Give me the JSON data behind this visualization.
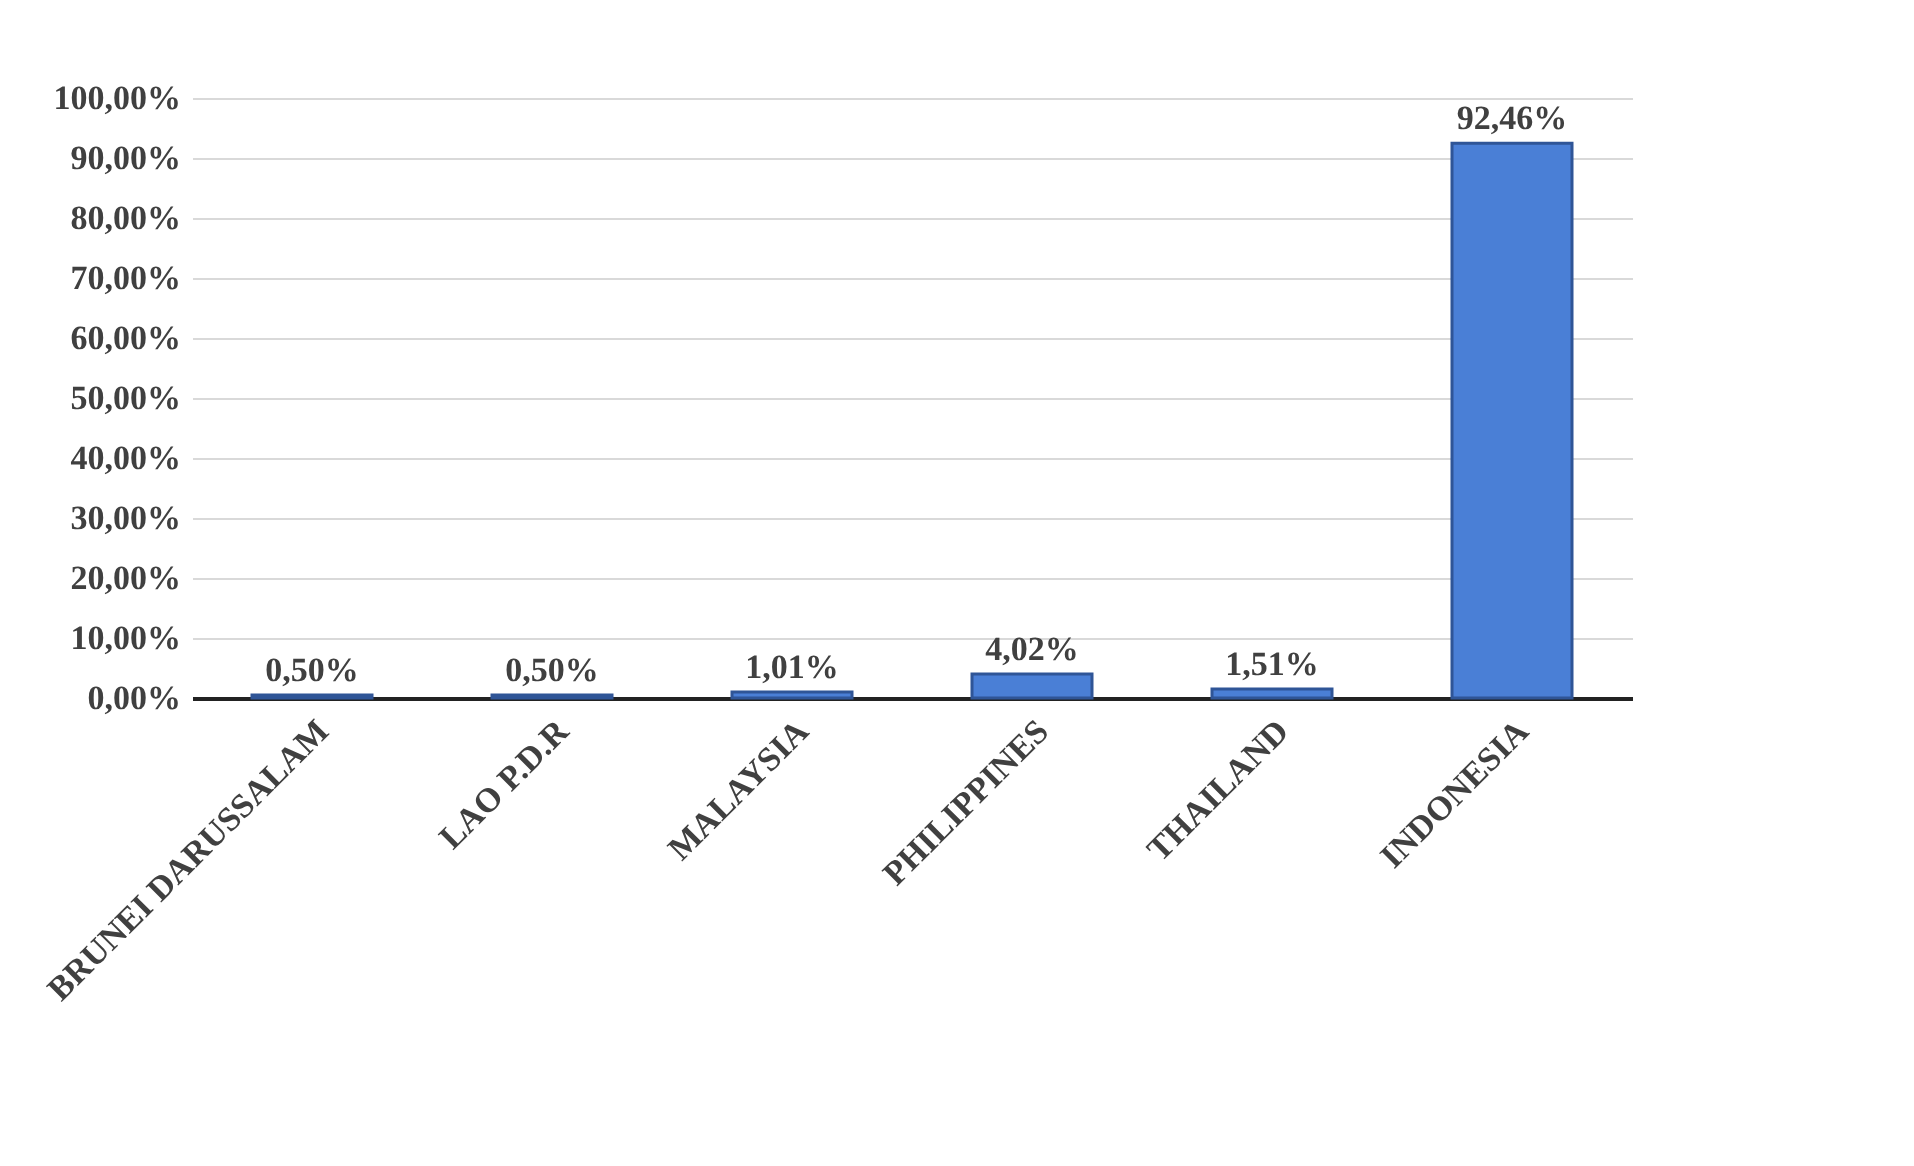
{
  "chart_data": {
    "type": "bar",
    "categories": [
      "BRUNEI DARUSSALAM",
      "LAO P.D.R",
      "MALAYSIA",
      "PHILIPPINES",
      "THAILAND",
      "INDONESIA"
    ],
    "values": [
      0.5,
      0.5,
      1.01,
      4.02,
      1.51,
      92.46
    ],
    "value_labels": [
      "0,50%",
      "0,50%",
      "1,01%",
      "4,02%",
      "1,51%",
      "92,46%"
    ],
    "color": "#4a7fd6",
    "ylim": [
      0,
      100
    ],
    "yticks": [
      {
        "value": 0,
        "label": "0,00%"
      },
      {
        "value": 10,
        "label": "10,00%"
      },
      {
        "value": 20,
        "label": "20,00%"
      },
      {
        "value": 30,
        "label": "30,00%"
      },
      {
        "value": 40,
        "label": "40,00%"
      },
      {
        "value": 50,
        "label": "50,00%"
      },
      {
        "value": 60,
        "label": "60,00%"
      },
      {
        "value": 70,
        "label": "70,00%"
      },
      {
        "value": 80,
        "label": "80,00%"
      },
      {
        "value": 90,
        "label": "90,00%"
      },
      {
        "value": 100,
        "label": "100,00%"
      }
    ],
    "grid": "y"
  }
}
